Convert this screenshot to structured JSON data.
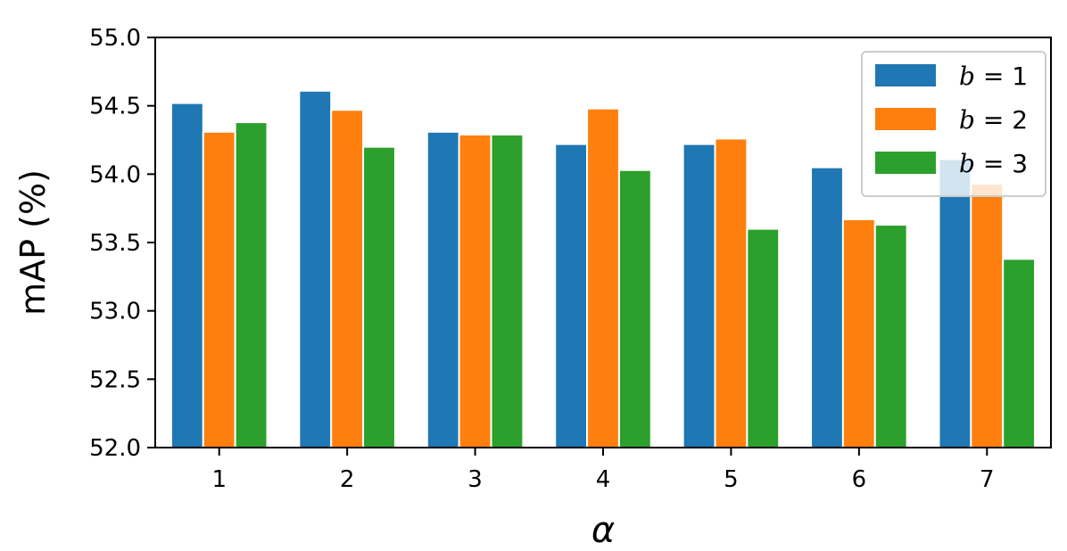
{
  "chart_data": {
    "type": "bar",
    "categories": [
      "1",
      "2",
      "3",
      "4",
      "5",
      "6",
      "7"
    ],
    "series": [
      {
        "name_var": "b",
        "name_value": "1",
        "color": "#1f77b4",
        "values": [
          54.52,
          54.61,
          54.31,
          54.22,
          54.22,
          54.05,
          54.11
        ]
      },
      {
        "name_var": "b",
        "name_value": "2",
        "color": "#ff7f0e",
        "values": [
          54.31,
          54.47,
          54.29,
          54.48,
          54.26,
          53.67,
          53.93
        ]
      },
      {
        "name_var": "b",
        "name_value": "3",
        "color": "#2ca02c",
        "values": [
          54.38,
          54.2,
          54.29,
          54.03,
          53.6,
          53.63,
          53.38
        ]
      }
    ],
    "xlabel": "α",
    "ylabel": "mAP (%)",
    "ylim": [
      52.0,
      55.0
    ],
    "yticks": [
      "52.0",
      "52.5",
      "53.0",
      "53.5",
      "54.0",
      "54.5",
      "55.0"
    ],
    "legend": {
      "position": "top-right"
    },
    "grid": false
  }
}
